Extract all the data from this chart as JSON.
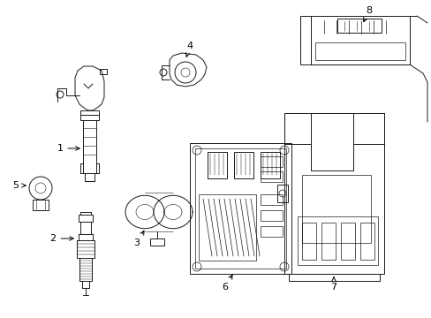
{
  "background_color": "#ffffff",
  "line_color": "#1a1a1a",
  "fig_width": 4.89,
  "fig_height": 3.6,
  "dpi": 100,
  "border_lw": 0.6
}
